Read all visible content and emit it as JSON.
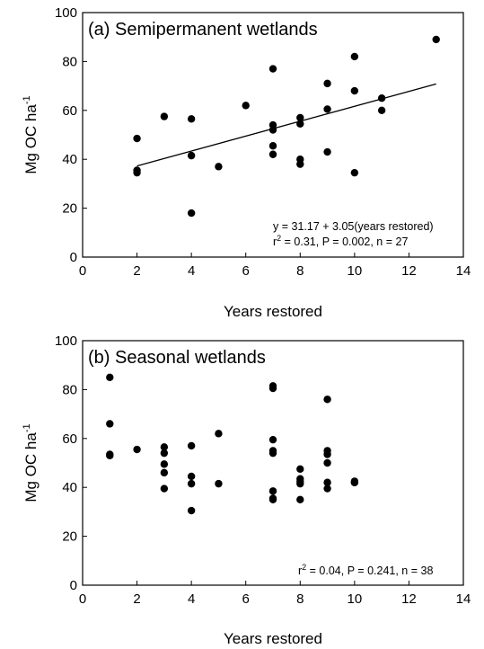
{
  "chart_data": [
    {
      "type": "scatter",
      "title": "(a) Semipermanent wetlands",
      "xlabel": "Years restored",
      "ylabel_main": "Mg OC ha",
      "ylabel_sup": "-1",
      "xlim": [
        0,
        14
      ],
      "ylim": [
        0,
        100
      ],
      "xticks": [
        "0",
        "2",
        "4",
        "6",
        "8",
        "10",
        "12",
        "14"
      ],
      "yticks": [
        "0",
        "20",
        "40",
        "60",
        "80",
        "100"
      ],
      "grid": false,
      "points": [
        {
          "x": 2,
          "y": 48.5
        },
        {
          "x": 2,
          "y": 35.5
        },
        {
          "x": 2,
          "y": 34.5
        },
        {
          "x": 3,
          "y": 57.5
        },
        {
          "x": 4,
          "y": 56.5
        },
        {
          "x": 4,
          "y": 41.5
        },
        {
          "x": 4,
          "y": 18
        },
        {
          "x": 5,
          "y": 37
        },
        {
          "x": 6,
          "y": 62
        },
        {
          "x": 7,
          "y": 77
        },
        {
          "x": 7,
          "y": 54
        },
        {
          "x": 7,
          "y": 52
        },
        {
          "x": 7,
          "y": 45.5
        },
        {
          "x": 7,
          "y": 42
        },
        {
          "x": 8,
          "y": 57
        },
        {
          "x": 8,
          "y": 54.5
        },
        {
          "x": 8,
          "y": 40
        },
        {
          "x": 8,
          "y": 38
        },
        {
          "x": 9,
          "y": 71
        },
        {
          "x": 9,
          "y": 60.5
        },
        {
          "x": 9,
          "y": 43
        },
        {
          "x": 10,
          "y": 82
        },
        {
          "x": 10,
          "y": 68
        },
        {
          "x": 10,
          "y": 34.5
        },
        {
          "x": 11,
          "y": 65
        },
        {
          "x": 11,
          "y": 60
        },
        {
          "x": 13,
          "y": 89
        }
      ],
      "regression": {
        "intercept": 31.17,
        "slope": 3.05,
        "x_from": 2,
        "x_to": 13
      },
      "stats_line1": "y = 31.17 + 3.05(years restored)",
      "stats_r": "r",
      "stats_sup": "2",
      "stats_rest": " = 0.31, P = 0.002, n = 27"
    },
    {
      "type": "scatter",
      "title": "(b) Seasonal wetlands",
      "xlabel": "Years restored",
      "ylabel_main": "Mg OC ha",
      "ylabel_sup": "-1",
      "xlim": [
        0,
        14
      ],
      "ylim": [
        0,
        100
      ],
      "xticks": [
        "0",
        "2",
        "4",
        "6",
        "8",
        "10",
        "12",
        "14"
      ],
      "yticks": [
        "0",
        "20",
        "40",
        "60",
        "80",
        "100"
      ],
      "grid": false,
      "points": [
        {
          "x": 1,
          "y": 85
        },
        {
          "x": 1,
          "y": 66
        },
        {
          "x": 1,
          "y": 53.5
        },
        {
          "x": 1,
          "y": 53
        },
        {
          "x": 2,
          "y": 55.5
        },
        {
          "x": 3,
          "y": 56.5
        },
        {
          "x": 3,
          "y": 54
        },
        {
          "x": 3,
          "y": 49.5
        },
        {
          "x": 3,
          "y": 46
        },
        {
          "x": 3,
          "y": 39.5
        },
        {
          "x": 4,
          "y": 57
        },
        {
          "x": 4,
          "y": 44.5
        },
        {
          "x": 4,
          "y": 41.5
        },
        {
          "x": 4,
          "y": 30.5
        },
        {
          "x": 5,
          "y": 62
        },
        {
          "x": 5,
          "y": 41.5
        },
        {
          "x": 7,
          "y": 81.5
        },
        {
          "x": 7,
          "y": 80.5
        },
        {
          "x": 7,
          "y": 59.5
        },
        {
          "x": 7,
          "y": 55
        },
        {
          "x": 7,
          "y": 54
        },
        {
          "x": 7,
          "y": 38.5
        },
        {
          "x": 7,
          "y": 35.5
        },
        {
          "x": 7,
          "y": 35
        },
        {
          "x": 8,
          "y": 47.5
        },
        {
          "x": 8,
          "y": 43.5
        },
        {
          "x": 8,
          "y": 42.5
        },
        {
          "x": 8,
          "y": 41.5
        },
        {
          "x": 8,
          "y": 35
        },
        {
          "x": 9,
          "y": 76
        },
        {
          "x": 9,
          "y": 55
        },
        {
          "x": 9,
          "y": 53.5
        },
        {
          "x": 9,
          "y": 50
        },
        {
          "x": 9,
          "y": 42
        },
        {
          "x": 9,
          "y": 39.5
        },
        {
          "x": 10,
          "y": 42.5
        },
        {
          "x": 10,
          "y": 42
        },
        {
          "x": 10,
          "y": 42
        }
      ],
      "regression": null,
      "stats_line1": "",
      "stats_r": "r",
      "stats_sup": "2",
      "stats_rest": " = 0.04, P = 0.241, n = 38"
    }
  ]
}
